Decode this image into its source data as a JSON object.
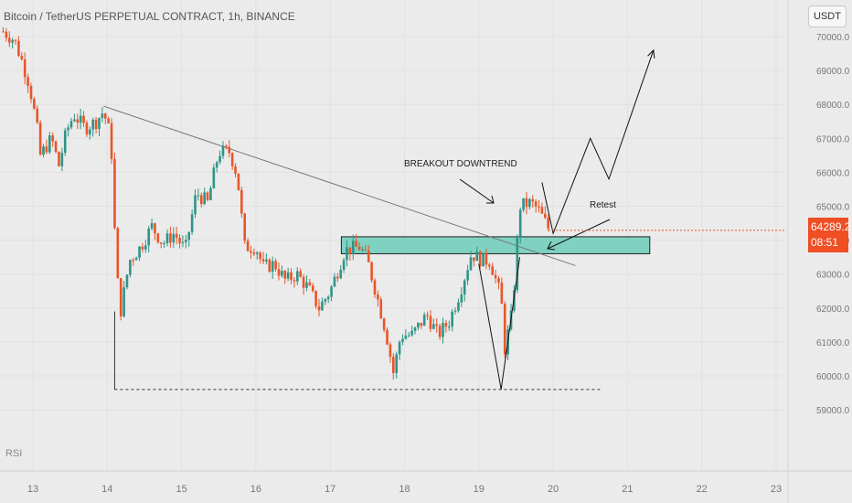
{
  "header": {
    "title": "Bitcoin / TetherUS PERPETUAL CONTRACT, 1h, BINANCE"
  },
  "currency": "USDT",
  "last_price": {
    "value": "64289.2",
    "countdown": "08:51"
  },
  "indicator": {
    "label": "RSI"
  },
  "colors": {
    "up": "#2f9488",
    "down": "#e8562a",
    "zone": "#7fd1c0",
    "price_tag": "#f04e23"
  },
  "annotations": {
    "breakout": "BREAKOUT DOWNTREND",
    "retest": "Retest"
  },
  "chart_data": {
    "type": "candlestick",
    "title": "Bitcoin / TetherUS PERPETUAL CONTRACT, 1h, BINANCE",
    "y_ticks": [
      70000,
      69000,
      68000,
      67000,
      66000,
      65000,
      64000,
      63000,
      62000,
      61000,
      60000,
      59000
    ],
    "x_ticks": [
      "13",
      "14",
      "15",
      "16",
      "17",
      "18",
      "19",
      "20",
      "21",
      "22",
      "23"
    ],
    "ylim": [
      58600,
      70300
    ],
    "xlim": [
      12.55,
      23.9
    ],
    "last_price": 64289.2,
    "series": [
      {
        "name": "close",
        "points": [
          [
            12.6,
            70150
          ],
          [
            12.75,
            69900
          ],
          [
            12.85,
            69300
          ],
          [
            12.95,
            68600
          ],
          [
            13.05,
            67400
          ],
          [
            13.1,
            66500
          ],
          [
            13.25,
            67000
          ],
          [
            13.35,
            66200
          ],
          [
            13.45,
            67200
          ],
          [
            13.55,
            67700
          ],
          [
            13.7,
            67300
          ],
          [
            13.85,
            67500
          ],
          [
            13.95,
            67800
          ],
          [
            14.05,
            67000
          ],
          [
            14.12,
            63200
          ],
          [
            14.18,
            61900
          ],
          [
            14.3,
            63400
          ],
          [
            14.45,
            63800
          ],
          [
            14.6,
            64400
          ],
          [
            14.75,
            63900
          ],
          [
            14.9,
            64200
          ],
          [
            15.05,
            63700
          ],
          [
            15.2,
            65400
          ],
          [
            15.35,
            65100
          ],
          [
            15.5,
            66600
          ],
          [
            15.65,
            66600
          ],
          [
            15.75,
            65900
          ],
          [
            15.85,
            63800
          ],
          [
            16.0,
            63800
          ],
          [
            16.1,
            63200
          ],
          [
            16.25,
            63300
          ],
          [
            16.4,
            62800
          ],
          [
            16.55,
            63000
          ],
          [
            16.7,
            62600
          ],
          [
            16.85,
            62000
          ],
          [
            17.0,
            62500
          ],
          [
            17.2,
            63700
          ],
          [
            17.4,
            63800
          ],
          [
            17.5,
            63400
          ],
          [
            17.6,
            62600
          ],
          [
            17.75,
            61300
          ],
          [
            17.85,
            60100
          ],
          [
            17.95,
            61200
          ],
          [
            18.1,
            61200
          ],
          [
            18.3,
            61800
          ],
          [
            18.45,
            61200
          ],
          [
            18.6,
            61600
          ],
          [
            18.75,
            62500
          ],
          [
            18.9,
            63600
          ],
          [
            19.05,
            63400
          ],
          [
            19.15,
            63400
          ],
          [
            19.3,
            62300
          ],
          [
            19.35,
            60800
          ],
          [
            19.45,
            61900
          ],
          [
            19.55,
            65000
          ],
          [
            19.7,
            65100
          ],
          [
            19.8,
            64900
          ],
          [
            19.95,
            64289
          ]
        ]
      }
    ],
    "resistance_zone": {
      "low": 63600,
      "high": 64100,
      "from_x": 17.15,
      "to_x": 21.3
    },
    "trendline": {
      "from": [
        13.95,
        67950
      ],
      "to": [
        20.3,
        63250
      ]
    },
    "support_line": {
      "value": 59600,
      "from_x": 14.1,
      "to_x": 20.65
    },
    "projection": [
      [
        19.85,
        65700
      ],
      [
        20.0,
        64200
      ],
      [
        20.5,
        67000
      ],
      [
        20.75,
        65800
      ],
      [
        21.35,
        69600
      ]
    ],
    "v_pattern": [
      [
        19.0,
        63300
      ],
      [
        19.3,
        59600
      ],
      [
        19.55,
        63500
      ]
    ]
  }
}
